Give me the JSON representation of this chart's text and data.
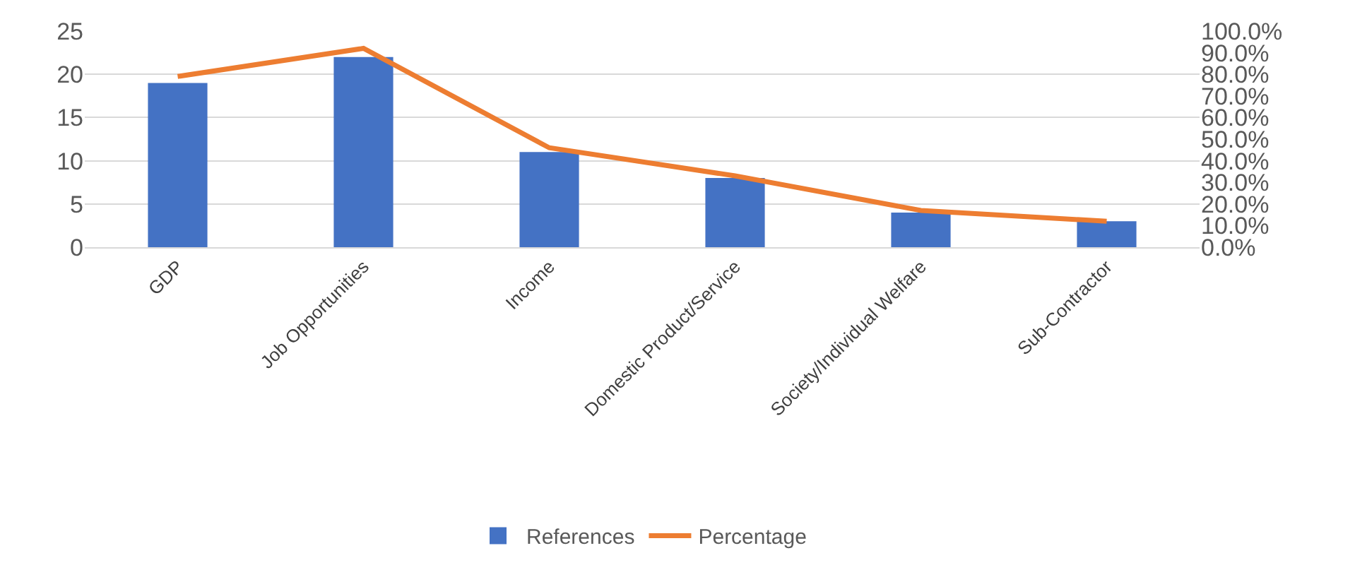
{
  "chart_data": {
    "type": "bar",
    "categories": [
      "GDP",
      "Job Opportunities",
      "Income",
      "Domestic Product/Service",
      "Society/Individual Welfare",
      "Sub-Contractor"
    ],
    "series": [
      {
        "name": "References",
        "color": "#4472c4",
        "values": [
          19,
          22,
          11,
          8,
          4,
          3
        ]
      },
      {
        "name": "Percentage",
        "type": "line",
        "axis": "y2",
        "color": "#ed7d31",
        "values": [
          79,
          92,
          46,
          33,
          17,
          12
        ]
      }
    ],
    "ylim": [
      0,
      25
    ],
    "yticks": [
      0,
      5,
      10,
      15,
      20,
      25
    ],
    "y2lim": [
      0,
      100
    ],
    "y2ticks": [
      {
        "value": 0,
        "label": "0.0%"
      },
      {
        "value": 10,
        "label": "10.0%"
      },
      {
        "value": 20,
        "label": "20.0%"
      },
      {
        "value": 30,
        "label": "30.0%"
      },
      {
        "value": 40,
        "label": "40.0%"
      },
      {
        "value": 50,
        "label": "50.0%"
      },
      {
        "value": 60,
        "label": "60.0%"
      },
      {
        "value": 70,
        "label": "70.0%"
      },
      {
        "value": 80,
        "label": "80.0%"
      },
      {
        "value": 90,
        "label": "90.0%"
      },
      {
        "value": 100,
        "label": "100.0%"
      }
    ],
    "grid": "y",
    "legend": "bottom",
    "marker": "none",
    "line_style": "solid"
  }
}
